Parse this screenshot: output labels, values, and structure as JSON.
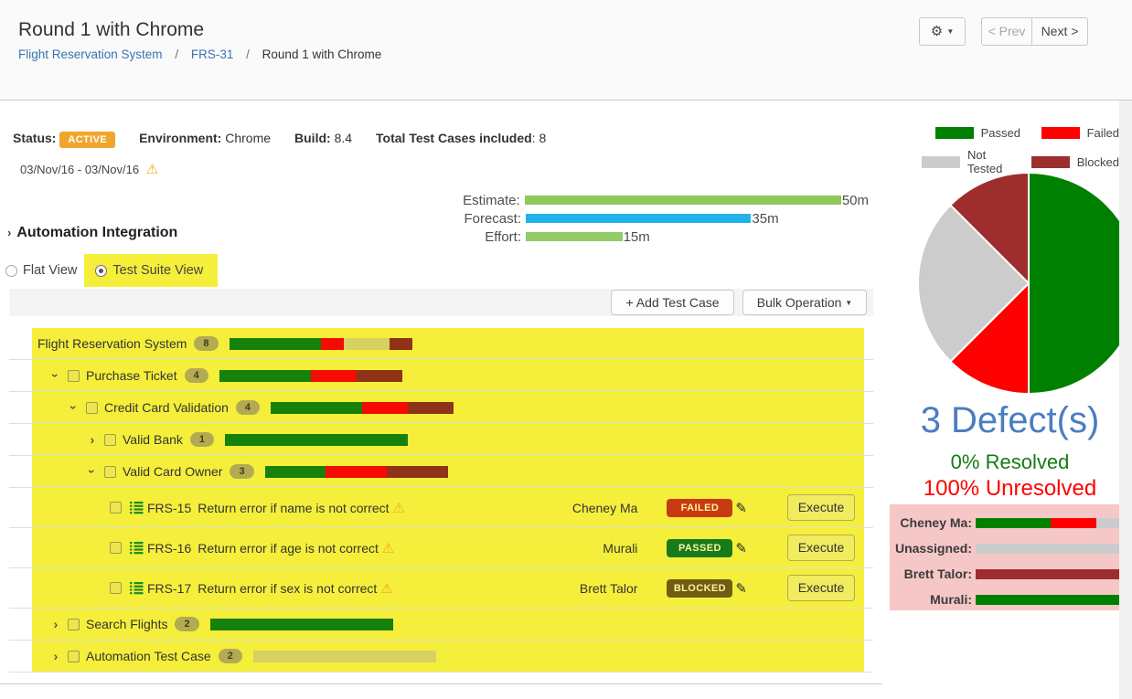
{
  "header": {
    "title": "Round 1 with Chrome",
    "breadcrumb": [
      "Flight Reservation System",
      "FRS-31",
      "Round 1 with Chrome"
    ],
    "separator": "/",
    "prev_label": "< Prev",
    "next_label": "Next >"
  },
  "summary": {
    "status_label": "Status:",
    "status_value": "ACTIVE",
    "environment_label": "Environment:",
    "environment_value": "Chrome",
    "build_label": "Build:",
    "build_value": "8.4",
    "total_label": "Total Test Cases included",
    "total_value": ": 8",
    "date_range": "03/Nov/16 - 03/Nov/16"
  },
  "gantt": {
    "rows": [
      {
        "label": "Estimate:",
        "value": "50m",
        "pct": 100,
        "color": "#8ec959"
      },
      {
        "label": "Forecast:",
        "value": "35m",
        "pct": 70,
        "color": "#24b1ea"
      },
      {
        "label": "Effort:",
        "value": "15m",
        "pct": 30,
        "color": "#93cc67"
      }
    ],
    "track_width": 352
  },
  "section_title": "Automation Integration",
  "views": {
    "flat": "Flat View",
    "suite": "Test Suite View"
  },
  "toolbar": {
    "add": "+ Add Test Case",
    "bulk": "Bulk Operation"
  },
  "execute_label": "Execute",
  "palette_rows": {
    "P": "#17810d",
    "F": "#f30b04",
    "N": "#d7d063",
    "B": "#8e3318"
  },
  "palette_chart": {
    "P": "#008000",
    "F": "#fe0000",
    "N": "#cccccc",
    "B": "#9e2d2d"
  },
  "status_colors": {
    "FAILED": "#c83a12",
    "PASSED": "#187a1a",
    "BLOCKED": "#6e5d12"
  },
  "tree_rows": [
    {
      "type": "suite",
      "level": 0,
      "arrow": "",
      "checkbox": false,
      "label": "Flight Reservation System",
      "count": "8",
      "segments": [
        {
          "key": "P",
          "pct": 50
        },
        {
          "key": "F",
          "pct": 12.5
        },
        {
          "key": "N",
          "pct": 25
        },
        {
          "key": "B",
          "pct": 12.5
        }
      ]
    },
    {
      "type": "suite",
      "level": 1,
      "arrow": "expanded",
      "checkbox": true,
      "label": "Purchase Ticket",
      "count": "4",
      "segments": [
        {
          "key": "P",
          "pct": 50
        },
        {
          "key": "F",
          "pct": 25
        },
        {
          "key": "B",
          "pct": 25
        }
      ]
    },
    {
      "type": "suite",
      "level": 2,
      "arrow": "expanded",
      "checkbox": true,
      "label": "Credit Card Validation",
      "count": "4",
      "segments": [
        {
          "key": "P",
          "pct": 50
        },
        {
          "key": "F",
          "pct": 25
        },
        {
          "key": "B",
          "pct": 25
        }
      ]
    },
    {
      "type": "suite",
      "level": 3,
      "arrow": "collapsed",
      "checkbox": true,
      "label": "Valid Bank",
      "count": "1",
      "segments": [
        {
          "key": "P",
          "pct": 100
        }
      ]
    },
    {
      "type": "suite",
      "level": 3,
      "arrow": "expanded",
      "checkbox": true,
      "label": "Valid Card Owner",
      "count": "3",
      "segments": [
        {
          "key": "P",
          "pct": 33.4
        },
        {
          "key": "F",
          "pct": 33.3
        },
        {
          "key": "B",
          "pct": 33.3
        }
      ]
    },
    {
      "type": "test",
      "level": 4,
      "id": "FRS-15",
      "title": "Return error if name is not correct",
      "assignee": "Cheney Ma",
      "status": "FAILED"
    },
    {
      "type": "test",
      "level": 4,
      "id": "FRS-16",
      "title": "Return error if age is not correct",
      "assignee": "Murali",
      "status": "PASSED"
    },
    {
      "type": "test",
      "level": 4,
      "id": "FRS-17",
      "title": "Return error if sex is not correct",
      "assignee": "Brett Talor",
      "status": "BLOCKED"
    },
    {
      "type": "suite",
      "level": 1,
      "arrow": "collapsed",
      "checkbox": true,
      "label": "Search Flights",
      "count": "2",
      "segments": [
        {
          "key": "P",
          "pct": 100
        }
      ]
    },
    {
      "type": "suite",
      "level": 1,
      "arrow": "collapsed",
      "checkbox": true,
      "label": "Automation Test Case",
      "count": "2",
      "segments": [
        {
          "key": "N",
          "pct": 100
        }
      ]
    }
  ],
  "right_panel": {
    "legend": [
      {
        "key": "P",
        "label": "Passed"
      },
      {
        "key": "F",
        "label": "Failed"
      },
      {
        "key": "N",
        "label": "Not Tested"
      },
      {
        "key": "B",
        "label": "Blocked"
      }
    ],
    "chart_data": {
      "type": "pie",
      "slices": [
        {
          "label": "Passed",
          "key": "P",
          "pct": 50
        },
        {
          "label": "Failed",
          "key": "F",
          "pct": 12.5
        },
        {
          "label": "Not Tested",
          "key": "N",
          "pct": 25
        },
        {
          "label": "Blocked",
          "key": "B",
          "pct": 12.5
        }
      ]
    },
    "defects_title": "3 Defect(s)",
    "resolved_text": "0% Resolved",
    "unresolved_text": "100% Unresolved",
    "assignments": [
      {
        "name": "Cheney Ma:",
        "segments": [
          {
            "key": "P",
            "pct": 50
          },
          {
            "key": "F",
            "pct": 31
          },
          {
            "key": "N",
            "pct": 19
          }
        ]
      },
      {
        "name": "Unassigned:",
        "segments": [
          {
            "key": "N",
            "pct": 100
          }
        ]
      },
      {
        "name": "Brett Talor:",
        "segments": [
          {
            "key": "B",
            "pct": 100
          }
        ]
      },
      {
        "name": "Murali:",
        "segments": [
          {
            "key": "P",
            "pct": 100
          }
        ]
      }
    ]
  }
}
